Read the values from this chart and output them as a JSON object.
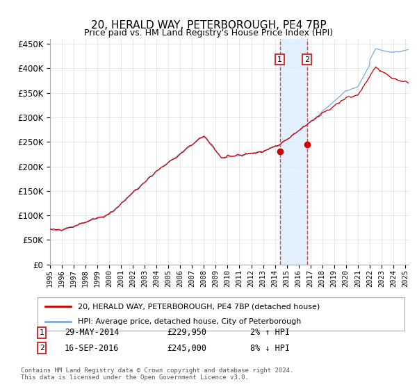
{
  "title": "20, HERALD WAY, PETERBOROUGH, PE4 7BP",
  "subtitle": "Price paid vs. HM Land Registry's House Price Index (HPI)",
  "ylim": [
    0,
    460000
  ],
  "yticks": [
    0,
    50000,
    100000,
    150000,
    200000,
    250000,
    300000,
    350000,
    400000,
    450000
  ],
  "xlim_start": 1995.0,
  "xlim_end": 2025.3,
  "property_color": "#cc0000",
  "hpi_color": "#7aabdb",
  "sale1_year": 2014.41,
  "sale1_price": 229950,
  "sale2_year": 2016.71,
  "sale2_price": 245000,
  "highlight_fill": "#ddeeff",
  "legend_property": "20, HERALD WAY, PETERBOROUGH, PE4 7BP (detached house)",
  "legend_hpi": "HPI: Average price, detached house, City of Peterborough",
  "footer": "Contains HM Land Registry data © Crown copyright and database right 2024.\nThis data is licensed under the Open Government Licence v3.0.",
  "title_fontsize": 11,
  "tick_fontsize": 8.5
}
